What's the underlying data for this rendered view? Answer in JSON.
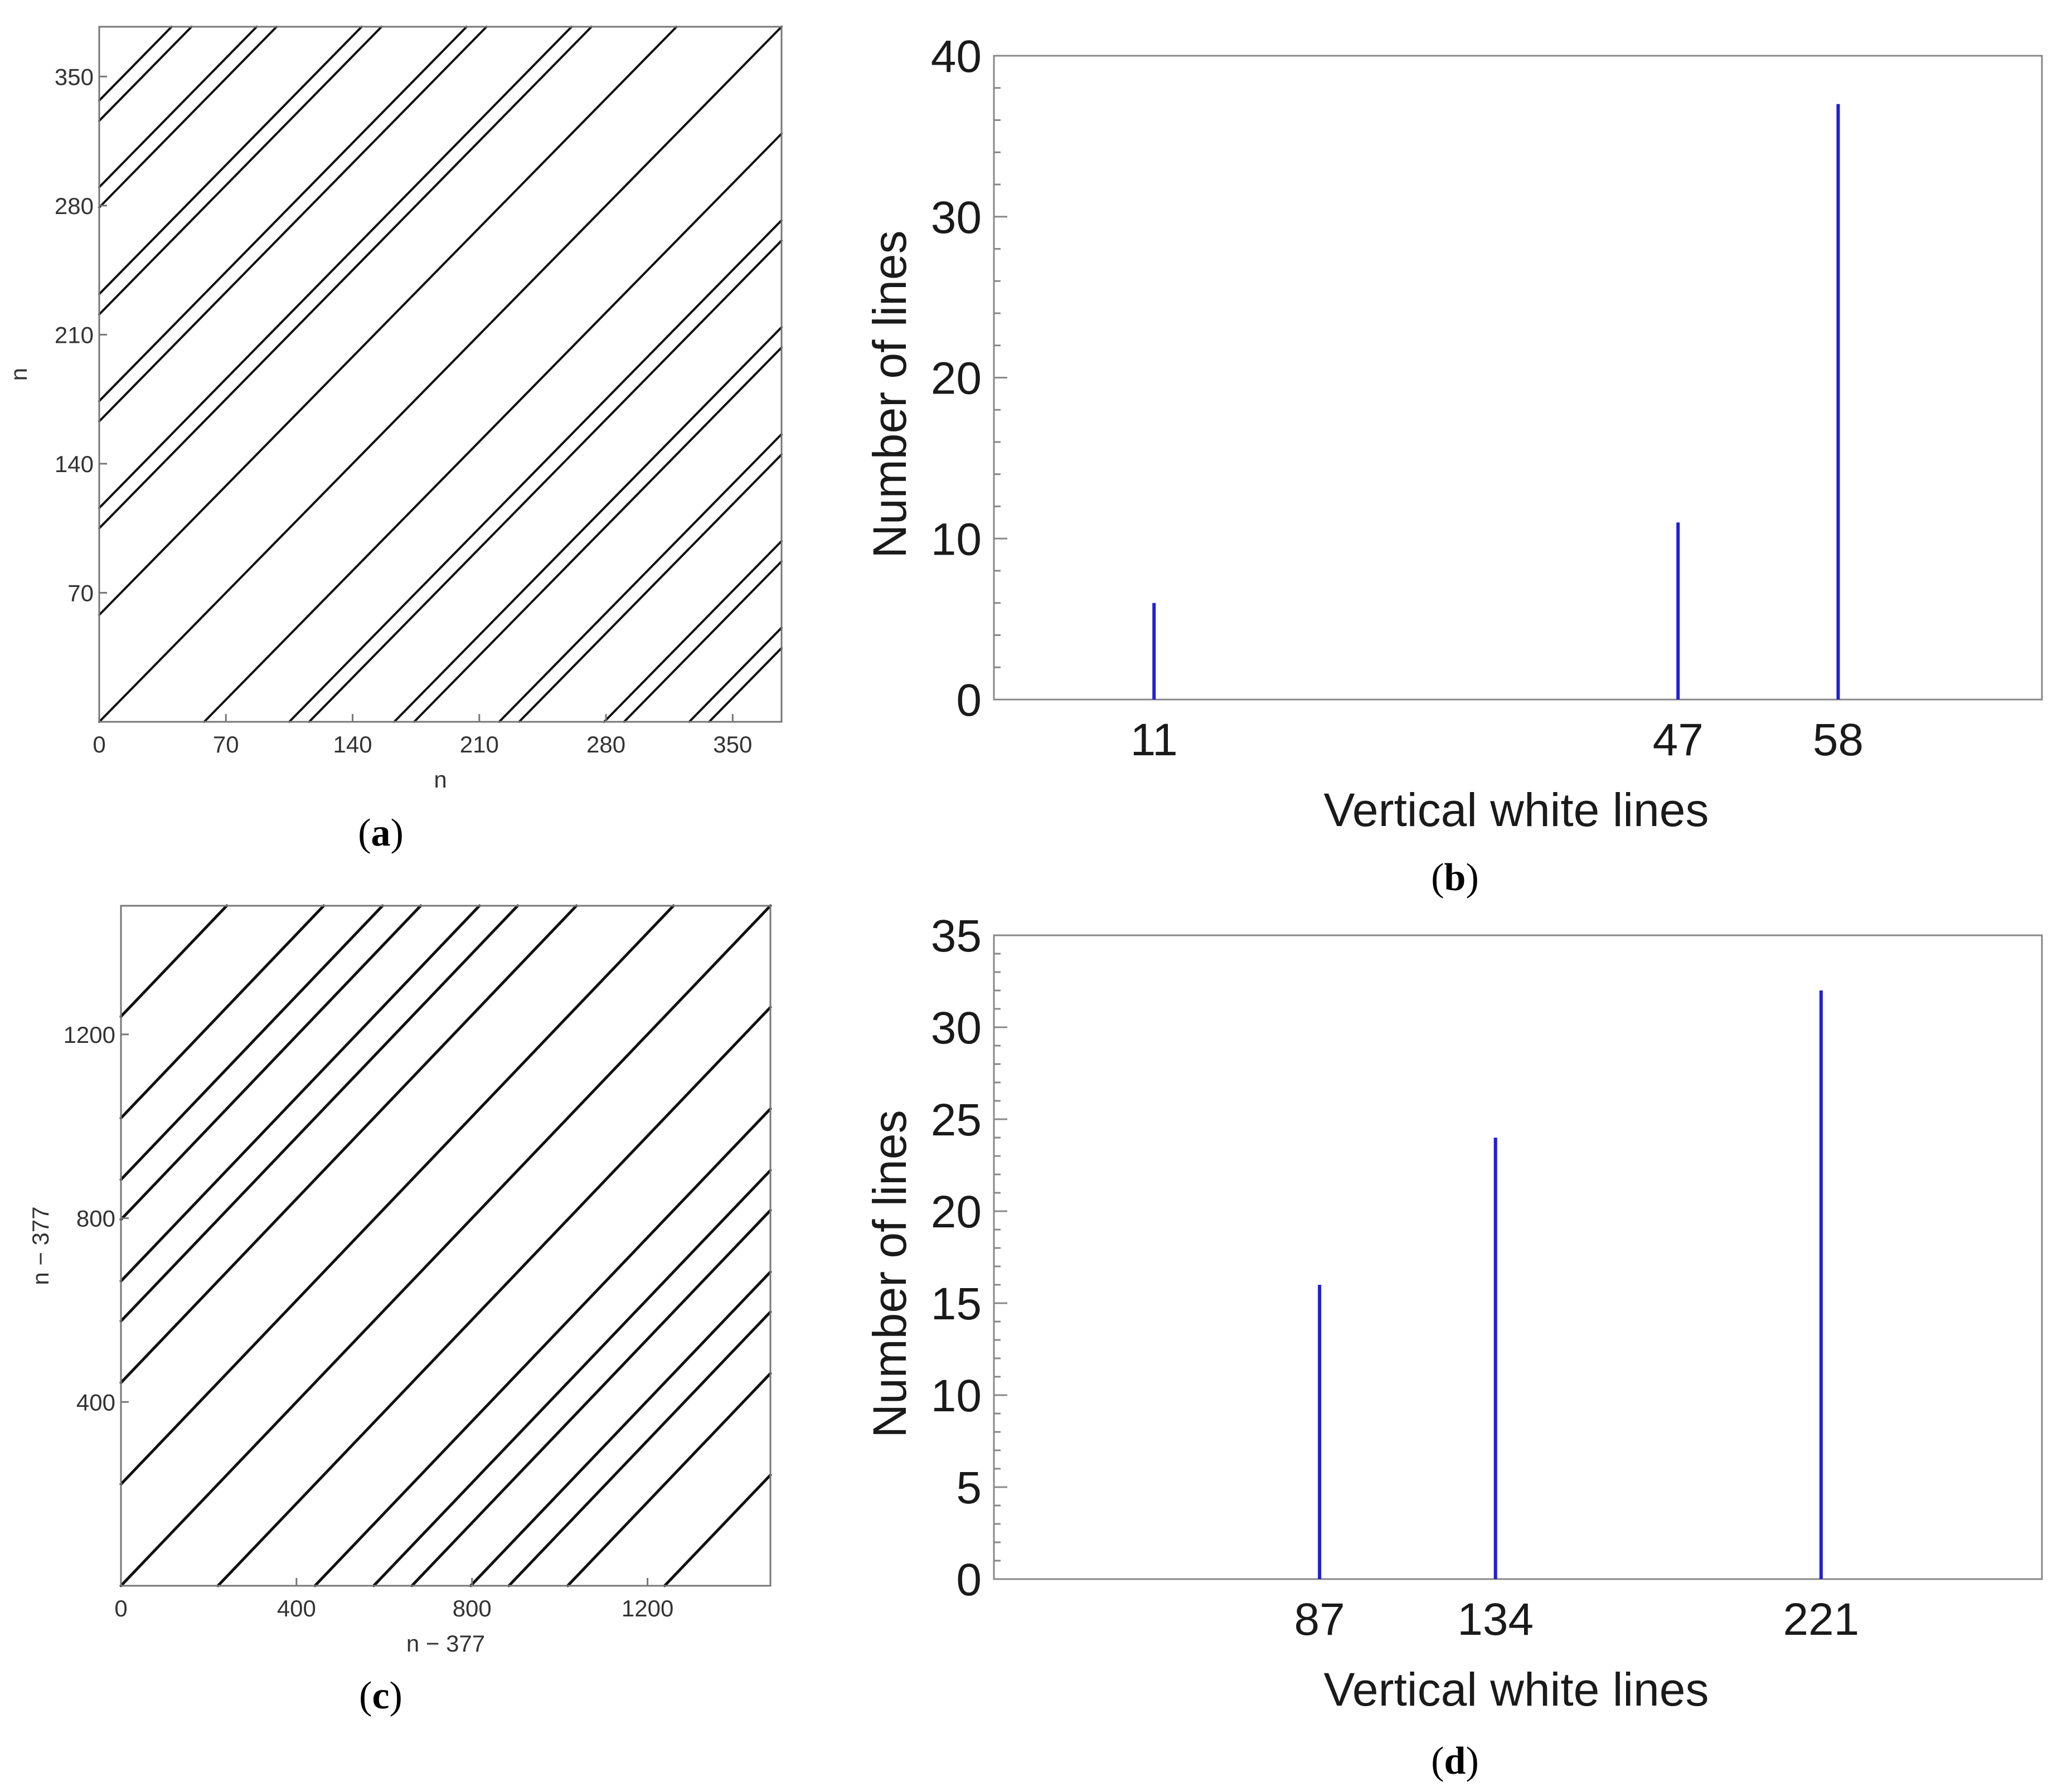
{
  "chart_data": [
    {
      "panel": "a",
      "type": "recurrence_plot",
      "xlabel": "n",
      "ylabel": "n",
      "xlim": [
        0,
        377
      ],
      "ylim": [
        0,
        377
      ],
      "xticks": [
        0,
        70,
        140,
        210,
        280,
        350
      ],
      "yticks": [
        70,
        140,
        210,
        280,
        350
      ],
      "diagonal_offsets": [
        0,
        58,
        105,
        116,
        163,
        174,
        221,
        232,
        279,
        290,
        326,
        337
      ]
    },
    {
      "panel": "b",
      "type": "bar",
      "xlabel": "Vertical white lines",
      "ylabel": "Number of lines",
      "xlim": [
        0,
        72
      ],
      "ylim": [
        0,
        40
      ],
      "xticks": [
        11,
        47,
        58
      ],
      "yticks": [
        0,
        10,
        20,
        30,
        40
      ],
      "x": [
        11,
        47,
        58
      ],
      "values": [
        6,
        11,
        37
      ],
      "bar_color": "#1f1fd6"
    },
    {
      "panel": "c",
      "type": "recurrence_plot",
      "xlabel": "n − 377",
      "ylabel": "n − 377",
      "xlim": [
        0,
        1480
      ],
      "ylim": [
        0,
        1480
      ],
      "xticks": [
        0,
        400,
        800,
        1200
      ],
      "yticks": [
        400,
        800,
        1200
      ],
      "diagonal_offsets": [
        0,
        221,
        442,
        576,
        663,
        797,
        884,
        1018,
        1239
      ]
    },
    {
      "panel": "d",
      "type": "bar",
      "xlabel": "Vertical white lines",
      "ylabel": "Number of lines",
      "xlim": [
        0,
        280
      ],
      "ylim": [
        0,
        35
      ],
      "xticks": [
        87,
        134,
        221
      ],
      "yticks": [
        0,
        5,
        10,
        15,
        20,
        25,
        30,
        35
      ],
      "x": [
        87,
        134,
        221
      ],
      "values": [
        16,
        24,
        32
      ],
      "bar_color": "#1f1fd6"
    }
  ],
  "panel_labels": {
    "a": {
      "open": "(",
      "letter": "a",
      "close": ")"
    },
    "b": {
      "open": "(",
      "letter": "b",
      "close": ")"
    },
    "c": {
      "open": "(",
      "letter": "c",
      "close": ")"
    },
    "d": {
      "open": "(",
      "letter": "d",
      "close": ")"
    }
  }
}
